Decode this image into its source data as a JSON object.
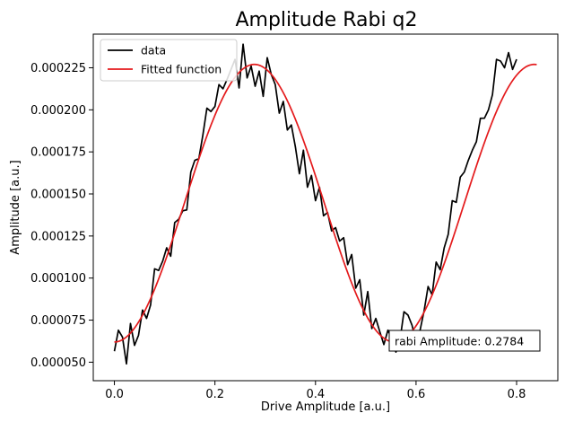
{
  "chart_data": {
    "type": "line",
    "title": "Amplitude Rabi q2",
    "xlabel": "Drive Amplitude [a.u.]",
    "ylabel": "Amplitude [a.u.]",
    "xlim": [
      -0.042,
      0.882
    ],
    "ylim": [
      3.9e-05,
      0.000245
    ],
    "x_ticks": [
      0.0,
      0.2,
      0.4,
      0.6,
      0.8
    ],
    "x_tick_labels": [
      "0.0",
      "0.2",
      "0.4",
      "0.6",
      "0.8"
    ],
    "y_ticks": [
      5e-05,
      7.5e-05,
      0.0001,
      0.000125,
      0.00015,
      0.000175,
      0.0002,
      0.000225
    ],
    "y_tick_labels": [
      "0.000050",
      "0.000075",
      "0.000100",
      "0.000125",
      "0.000150",
      "0.000175",
      "0.000200",
      "0.000225"
    ],
    "grid": false,
    "legend_position": "top-left",
    "series": [
      {
        "name": "data",
        "color": "#000000",
        "x_start": 0.0,
        "x_step": 0.008,
        "values": [
          5.65e-05,
          6.9e-05,
          6.5e-05,
          4.9e-05,
          7.3e-05,
          6e-05,
          6.6e-05,
          8.1e-05,
          7.6e-05,
          8.4e-05,
          0.0001055,
          0.0001045,
          0.00011,
          0.000118,
          0.000113,
          0.000133,
          0.000135,
          0.00014,
          0.0001405,
          0.000163,
          0.00017,
          0.000171,
          0.000185,
          0.000201,
          0.000199,
          0.000202,
          0.000215,
          0.0002125,
          0.000218,
          0.000224,
          0.00023,
          0.000213,
          0.000239,
          0.000219,
          0.000226,
          0.000214,
          0.000223,
          0.000208,
          0.000231,
          0.000221,
          0.000215,
          0.000198,
          0.000205,
          0.000188,
          0.000191,
          0.000178,
          0.000162,
          0.000176,
          0.000154,
          0.000161,
          0.000146,
          0.000154,
          0.000137,
          0.000139,
          0.000128,
          0.00013,
          0.000122,
          0.000124,
          0.000108,
          0.000114,
          9.4e-05,
          9.9e-05,
          7.8e-05,
          9.2e-05,
          7e-05,
          7.6e-05,
          6.8e-05,
          6.05e-05,
          6.9e-05,
          6.4e-05,
          5.6e-05,
          6.3e-05,
          8e-05,
          7.8e-05,
          7.2e-05,
          6.2e-05,
          6.9e-05,
          8.05e-05,
          9.5e-05,
          9e-05,
          0.0001095,
          0.000105,
          0.000118,
          0.000126,
          0.000146,
          0.000145,
          0.00016,
          0.000163,
          0.00017,
          0.000176,
          0.000181,
          0.000195,
          0.000195,
          0.0002,
          0.000209,
          0.00023,
          0.000229,
          0.000225,
          0.000234,
          0.000224,
          0.00023
        ]
      },
      {
        "name": "Fitted function",
        "color": "#e41a1c",
        "function": "offset - amp*cos(2*pi*x/period)",
        "offset": 0.0001445,
        "amp": 8.25e-05,
        "period": 0.5568,
        "x_range": [
          0.0,
          0.84
        ]
      }
    ],
    "annotation": "rabi Amplitude: 0.2784"
  }
}
